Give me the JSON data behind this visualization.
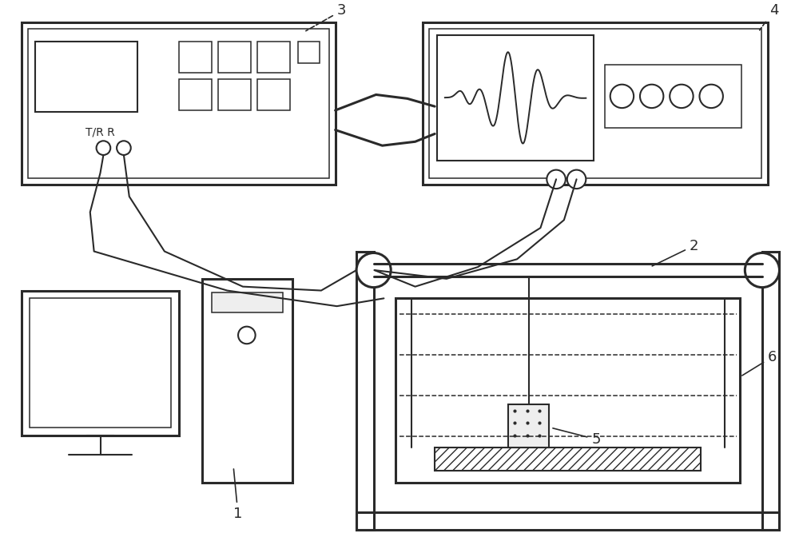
{
  "line_color": "#2a2a2a",
  "bg_color": "#ffffff",
  "lw_thick": 2.2,
  "lw_med": 1.5,
  "lw_thin": 1.1
}
